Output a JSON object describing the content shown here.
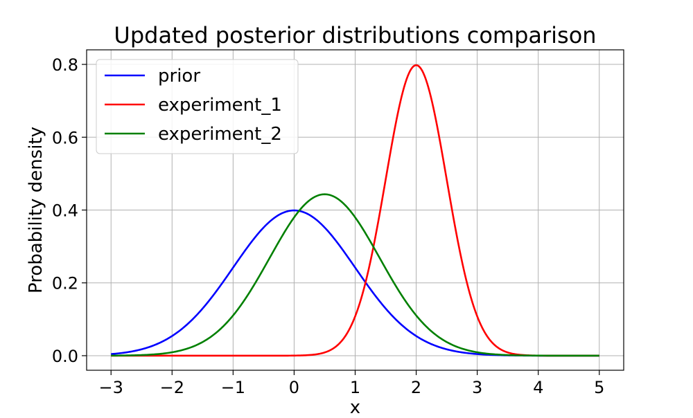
{
  "chart_data": {
    "type": "line",
    "title": "Updated posterior distributions comparison",
    "xlabel": "x",
    "ylabel": "Probability density",
    "xlim": [
      -3.4,
      5.4
    ],
    "ylim": [
      -0.04,
      0.84
    ],
    "xticks": [
      -3,
      -2,
      -1,
      0,
      1,
      2,
      3,
      4,
      5
    ],
    "xtick_labels": [
      "−3",
      "−2",
      "−1",
      "0",
      "1",
      "2",
      "3",
      "4",
      "5"
    ],
    "yticks": [
      0.0,
      0.2,
      0.4,
      0.6,
      0.8
    ],
    "ytick_labels": [
      "0.0",
      "0.2",
      "0.4",
      "0.6",
      "0.8"
    ],
    "grid": true,
    "legend_position": "top-left",
    "series": [
      {
        "name": "prior",
        "color": "#0000ff",
        "distribution": "normal",
        "mean": 0.0,
        "std": 1.0,
        "peak": 0.399
      },
      {
        "name": "experiment_1",
        "color": "#ff0000",
        "distribution": "normal",
        "mean": 2.0,
        "std": 0.5,
        "peak": 0.798
      },
      {
        "name": "experiment_2",
        "color": "#008000",
        "distribution": "normal",
        "mean": 0.5,
        "std": 0.9,
        "peak": 0.443
      }
    ],
    "x_range": [
      -3,
      5
    ]
  }
}
